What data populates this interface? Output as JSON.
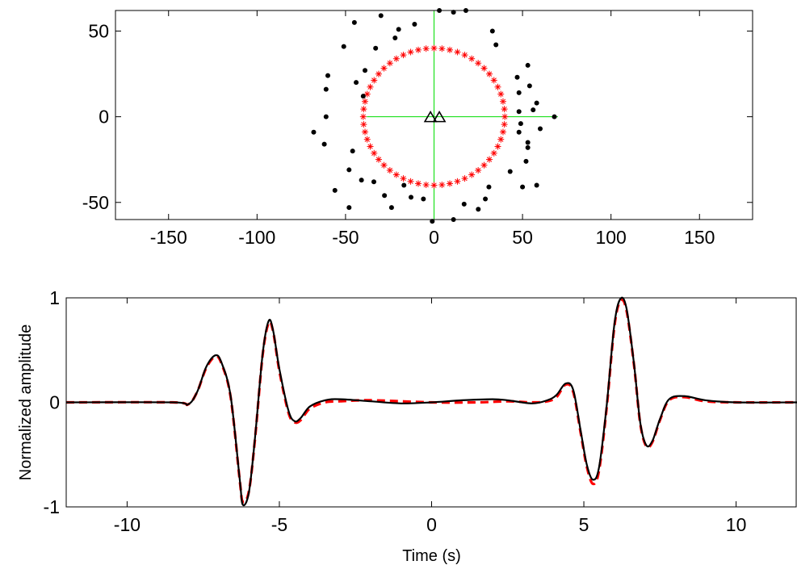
{
  "chart_data": [
    {
      "type": "scatter",
      "title": "",
      "xlabel": "",
      "ylabel": "",
      "xlim": [
        -180,
        180
      ],
      "ylim": [
        -60,
        62
      ],
      "xticks": [
        -150,
        -100,
        -50,
        0,
        50,
        100,
        150
      ],
      "xtick_labels": [
        "-150",
        "-100",
        "-50",
        "0",
        "50",
        "100",
        "150"
      ],
      "yticks": [
        -50,
        0,
        50
      ],
      "ytick_labels": [
        "-50",
        "0",
        "50"
      ],
      "grid": false,
      "legend": "none",
      "crosshair": {
        "color": "#00dd00",
        "x_range": [
          -38,
          70
        ],
        "y_range": [
          -60,
          62
        ]
      },
      "ring": {
        "shape": "asterisk",
        "color": "#ff0000",
        "radius": 40,
        "count": 56
      },
      "stations": {
        "shape": "triangle-open",
        "color": "#000000",
        "points": [
          [
            -2,
            0
          ],
          [
            3,
            0
          ]
        ]
      },
      "dots": {
        "shape": "dot",
        "color": "#000000",
        "points": [
          [
            -68,
            -9
          ],
          [
            -62,
            -16
          ],
          [
            -61,
            0
          ],
          [
            -61,
            16
          ],
          [
            -60,
            24
          ],
          [
            -56,
            -43
          ],
          [
            -51,
            41
          ],
          [
            -48,
            -31
          ],
          [
            -46,
            -20
          ],
          [
            -44,
            20
          ],
          [
            -45,
            55
          ],
          [
            -48,
            -53
          ],
          [
            -40,
            12
          ],
          [
            -41,
            -37
          ],
          [
            -39,
            27
          ],
          [
            -34,
            -38
          ],
          [
            -33,
            40
          ],
          [
            -30,
            59
          ],
          [
            -28,
            -46
          ],
          [
            -24,
            -53
          ],
          [
            -22,
            46
          ],
          [
            -20,
            51
          ],
          [
            -17,
            -40
          ],
          [
            -13,
            -47
          ],
          [
            -11,
            54
          ],
          [
            -6,
            -48
          ],
          [
            -1,
            -61
          ],
          [
            3,
            62
          ],
          [
            11,
            -60
          ],
          [
            11,
            61
          ],
          [
            18,
            62
          ],
          [
            17,
            -51
          ],
          [
            25,
            -54
          ],
          [
            31,
            -41
          ],
          [
            29,
            -48
          ],
          [
            33,
            50
          ],
          [
            35,
            42
          ],
          [
            43,
            -32
          ],
          [
            47,
            23
          ],
          [
            48,
            14
          ],
          [
            48,
            -9
          ],
          [
            49,
            -4
          ],
          [
            48,
            3
          ],
          [
            50,
            -41
          ],
          [
            52,
            -26
          ],
          [
            53,
            30
          ],
          [
            53,
            -15
          ],
          [
            54,
            18
          ],
          [
            53,
            -18
          ],
          [
            56,
            4
          ],
          [
            60,
            -7
          ],
          [
            58,
            8
          ],
          [
            58,
            -40
          ],
          [
            68,
            0
          ]
        ]
      }
    },
    {
      "type": "line",
      "title": "",
      "xlabel": "Time (s)",
      "ylabel": "Normalized amplitude",
      "xlim": [
        -12,
        12
      ],
      "ylim": [
        -1,
        1
      ],
      "xticks": [
        -10,
        -5,
        0,
        5,
        10
      ],
      "xtick_labels": [
        "-10",
        "-5",
        "0",
        "5",
        "10"
      ],
      "yticks": [
        -1,
        0,
        1
      ],
      "ytick_labels": [
        "-1",
        "0",
        "1"
      ],
      "grid": false,
      "legend": "none",
      "series": [
        {
          "color": "#ff0000",
          "dash": "dashed",
          "x": [
            -12,
            -8.5,
            -8,
            -7.7,
            -7.4,
            -7.1,
            -6.9,
            -6.6,
            -6.3,
            -6.2,
            -6.0,
            -5.8,
            -5.55,
            -5.35,
            -5.2,
            -5.0,
            -4.7,
            -4.5,
            -4.3,
            -4.0,
            -3.5,
            -3.0,
            -2.0,
            0,
            1.5,
            2.5,
            3.3,
            3.8,
            4.1,
            4.4,
            4.65,
            4.9,
            5.1,
            5.3,
            5.5,
            5.75,
            6.0,
            6.2,
            6.4,
            6.65,
            6.85,
            7.05,
            7.25,
            7.5,
            7.8,
            8.3,
            9.0,
            10,
            12
          ],
          "y": [
            0,
            0,
            -0.02,
            0.1,
            0.33,
            0.44,
            0.37,
            0.05,
            -0.75,
            -0.95,
            -0.85,
            -0.35,
            0.45,
            0.76,
            0.67,
            0.3,
            -0.1,
            -0.19,
            -0.17,
            -0.06,
            0.0,
            0.01,
            0.02,
            0.0,
            0.0,
            0.01,
            0.0,
            0.01,
            0.05,
            0.17,
            0.1,
            -0.3,
            -0.62,
            -0.78,
            -0.65,
            -0.05,
            0.72,
            0.97,
            0.88,
            0.35,
            -0.2,
            -0.42,
            -0.38,
            -0.17,
            0.02,
            0.05,
            0.01,
            0,
            0
          ]
        },
        {
          "color": "#000000",
          "dash": "solid",
          "x": [
            -12,
            -8.5,
            -8,
            -7.7,
            -7.4,
            -7.1,
            -6.9,
            -6.6,
            -6.3,
            -6.2,
            -6.0,
            -5.8,
            -5.55,
            -5.35,
            -5.2,
            -5.0,
            -4.7,
            -4.5,
            -4.3,
            -4.0,
            -3.5,
            -3.0,
            -2.0,
            -1.0,
            0,
            1.0,
            2.0,
            2.5,
            3.3,
            3.8,
            4.1,
            4.4,
            4.65,
            4.9,
            5.1,
            5.3,
            5.5,
            5.75,
            6.0,
            6.2,
            6.4,
            6.65,
            6.85,
            7.05,
            7.25,
            7.5,
            7.8,
            8.3,
            9.0,
            10,
            12
          ],
          "y": [
            0,
            0,
            -0.02,
            0.1,
            0.34,
            0.45,
            0.38,
            0.06,
            -0.74,
            -0.98,
            -0.86,
            -0.34,
            0.46,
            0.78,
            0.68,
            0.32,
            -0.08,
            -0.18,
            -0.15,
            -0.04,
            0.02,
            0.03,
            0.01,
            -0.01,
            0.0,
            0.02,
            0.03,
            0.02,
            -0.01,
            0.02,
            0.07,
            0.18,
            0.12,
            -0.28,
            -0.6,
            -0.74,
            -0.62,
            -0.03,
            0.74,
            0.99,
            0.9,
            0.36,
            -0.19,
            -0.41,
            -0.37,
            -0.16,
            0.03,
            0.06,
            0.02,
            0,
            0
          ]
        }
      ]
    }
  ]
}
